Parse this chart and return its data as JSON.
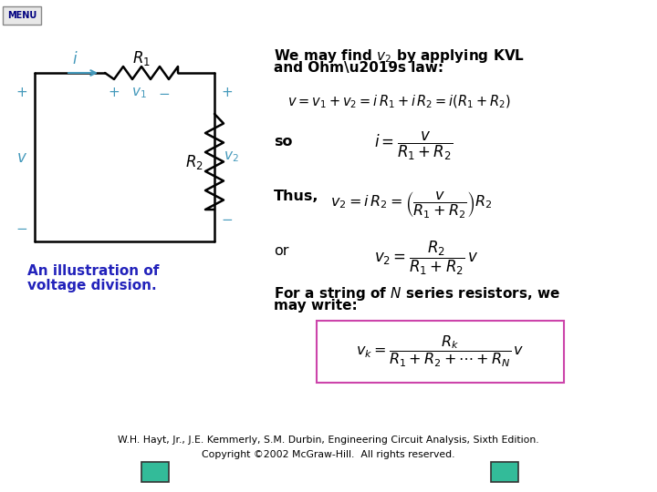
{
  "bg_color": "#ffffff",
  "menu_text": "MENU",
  "menu_text_color": "#000080",
  "title_text1": "We may find $v_2$ by applying KVL",
  "title_text2": "and Ohm\\u2019s law:",
  "eq1": "$v = v_1 + v_2 = i\\,R_1 + i\\,R_2 = i(R_1 + R_2)$",
  "so_label": "so",
  "eq2": "$i = \\dfrac{v}{R_1 + R_2}$",
  "thus_label": "Thus,",
  "eq3": "$v_2 = i\\,R_2 = \\left(\\dfrac{v}{R_1 + R_2}\\right)R_2$",
  "or_label": "or",
  "eq4": "$v_2 = \\dfrac{R_2}{R_1 + R_2}\\,v$",
  "for_text1": "For a string of $N$ series resistors, we",
  "for_text2": "may write:",
  "eq5": "$v_k = \\dfrac{R_k}{R_1 + R_2 + \\cdots + R_N}\\,v$",
  "eq5_box_color": "#cc44aa",
  "illustration_text1": "An illustration of",
  "illustration_text2": "voltage division.",
  "illustration_color": "#2222bb",
  "footer1": "W.H. Hayt, Jr., J.E. Kemmerly, S.M. Durbin, Engineering Circuit Analysis, Sixth Edition.",
  "footer2": "Copyright ©2002 McGraw-Hill.  All rights reserved.",
  "nav_box_color": "#33bb99",
  "circuit_color": "#000000",
  "circuit_blue": "#4499bb",
  "bold_text_color": "#000000",
  "so_bold": true,
  "thus_bold": true,
  "or_bold": false,
  "for_bold": true
}
